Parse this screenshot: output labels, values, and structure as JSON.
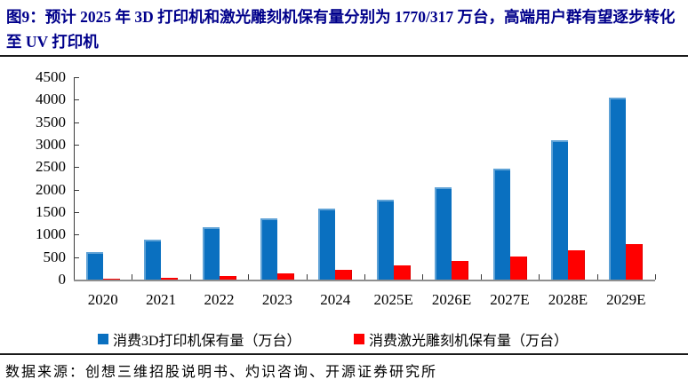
{
  "figure": {
    "title": "图9：预计 2025 年 3D 打印机和激光雕刻机保有量分别为 1770/317 万台，高端用户群有望逐步转化至 UV 打印机",
    "source": "数据来源：创想三维招股说明书、灼识咨询、开源证券研究所"
  },
  "colors": {
    "title_text": "#00008B",
    "series_blue": "#0A70C0",
    "series_red": "#FF0000",
    "axis_line": "#3a3a3a",
    "baseline": "#8e8e8e",
    "divider": "#1a1a1a"
  },
  "chart_data": {
    "type": "bar",
    "categories": [
      "2020",
      "2021",
      "2022",
      "2023",
      "2024",
      "2025E",
      "2026E",
      "2027E",
      "2028E",
      "2029E"
    ],
    "series": [
      {
        "name": "消费3D打印机保有量（万台）",
        "color": "#0A70C0",
        "values": [
          620,
          880,
          1170,
          1370,
          1570,
          1770,
          2060,
          2470,
          3100,
          4050
        ]
      },
      {
        "name": "消费激光雕刻机保有量（万台）",
        "color": "#FF0000",
        "values": [
          10,
          35,
          75,
          140,
          220,
          317,
          410,
          520,
          650,
          790
        ]
      }
    ],
    "title": "预计 2025 年 3D 打印机和激光雕刻机保有量分别为 1770/317 万台",
    "xlabel": "",
    "ylabel": "",
    "ylim": [
      0,
      4500
    ],
    "ytick_step": 500,
    "ytick_labels": [
      "0",
      "500",
      "1000",
      "1500",
      "2000",
      "2500",
      "3000",
      "3500",
      "4000",
      "4500"
    ],
    "grid": false,
    "legend_position": "bottom"
  }
}
